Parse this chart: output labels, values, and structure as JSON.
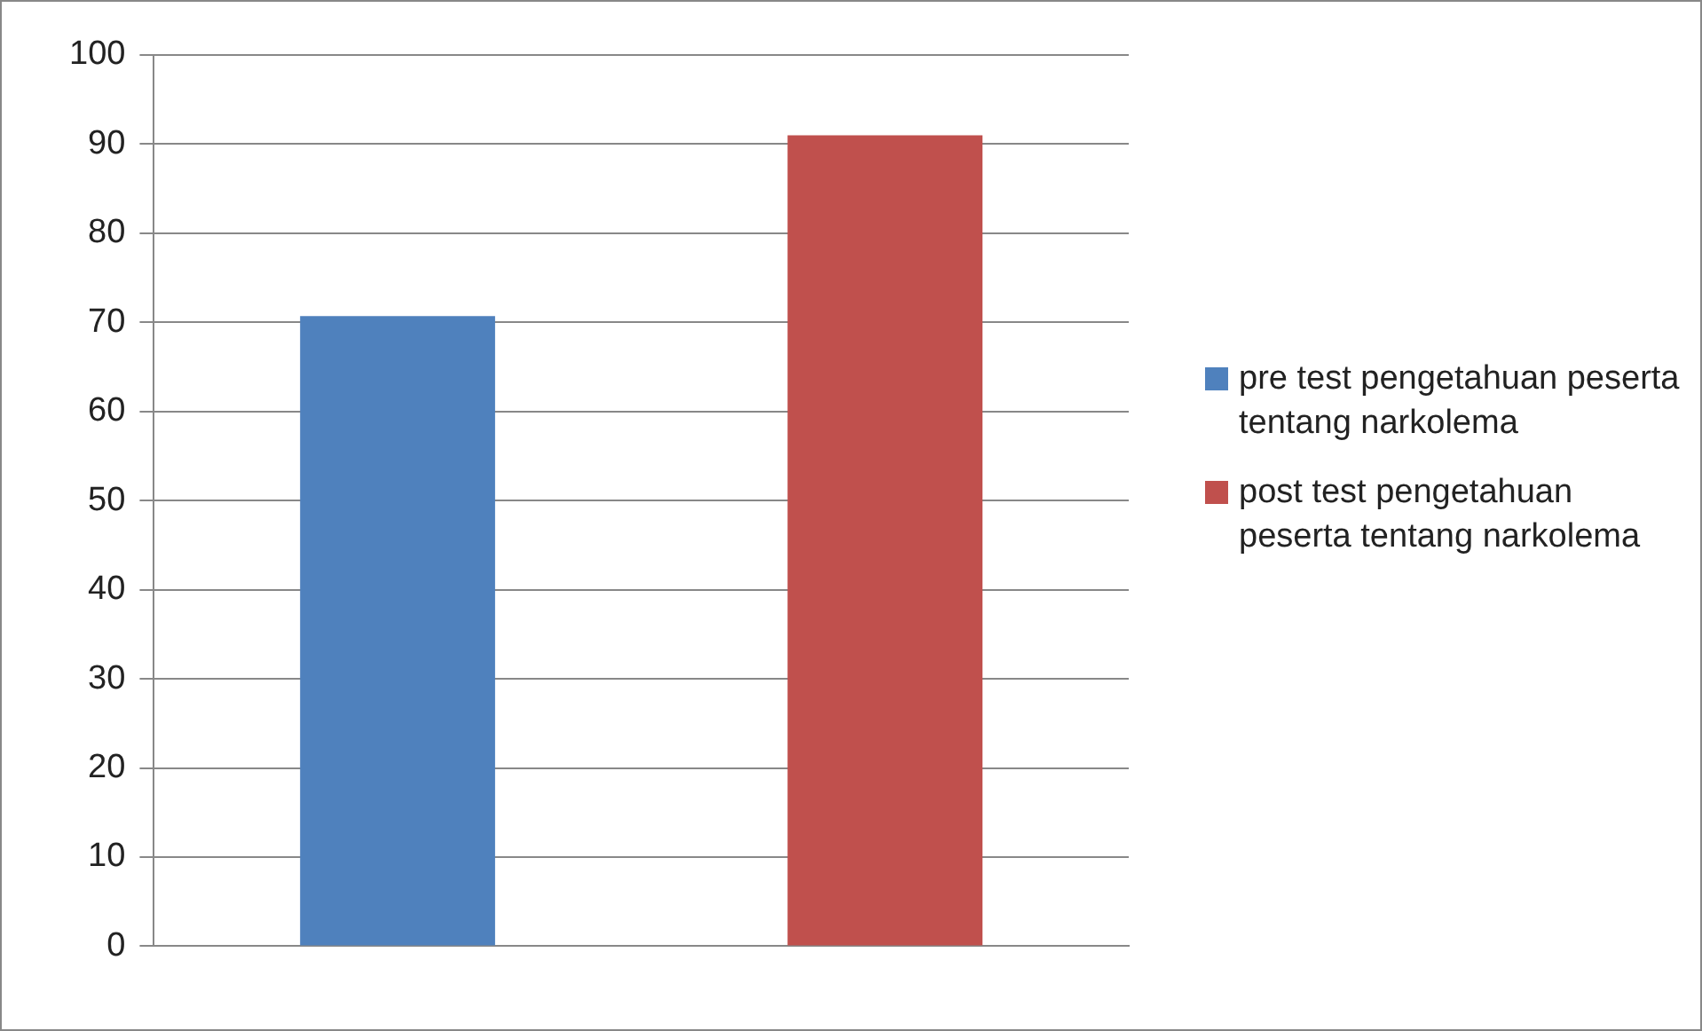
{
  "chart_data": {
    "type": "bar",
    "categories": [
      null
    ],
    "series": [
      {
        "name": "pre test pengetahuan peserta tentang narkolema",
        "color": "#4f81bd",
        "values": [
          70.7
        ]
      },
      {
        "name": "post test pengetahuan peserta tentang narkolema",
        "color": "#c0504d",
        "values": [
          91
        ]
      }
    ],
    "ylim": [
      0,
      100
    ],
    "yticks": [
      0,
      10,
      20,
      30,
      40,
      50,
      60,
      70,
      80,
      90,
      100
    ],
    "grid": "y",
    "legend": "right"
  }
}
